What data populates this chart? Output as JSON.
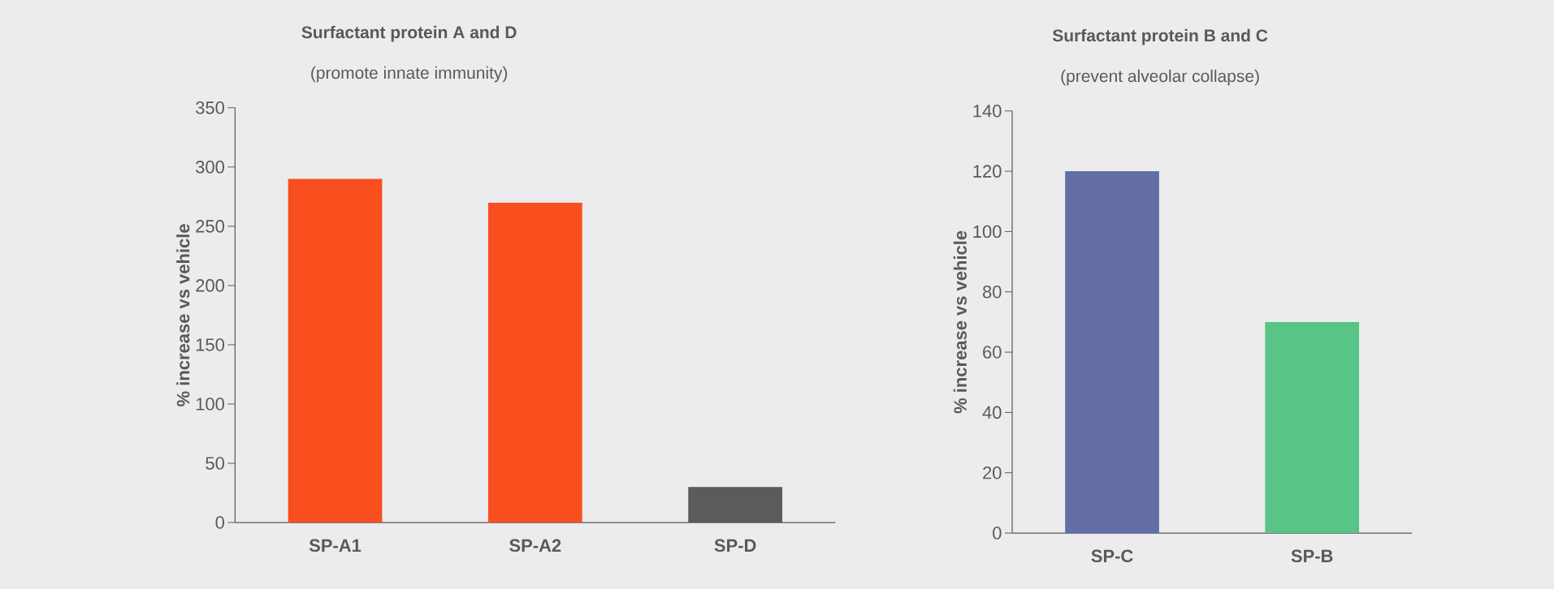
{
  "chart_data": [
    {
      "type": "bar",
      "title": "Surfactant protein A and D",
      "subtitle": "(promote innate immunity)",
      "ylabel": "% increase vs vehicle",
      "categories": [
        "SP-A1",
        "SP-A2",
        "SP-D"
      ],
      "values": [
        290,
        270,
        30
      ],
      "colors": [
        "#f94f1f",
        "#f94f1f",
        "#5b5b5b"
      ],
      "ylim": [
        0,
        350
      ],
      "yticks": [
        0,
        50,
        100,
        150,
        200,
        250,
        300,
        350
      ]
    },
    {
      "type": "bar",
      "title": "Surfactant protein B and C",
      "subtitle": "(prevent alveolar collapse)",
      "ylabel": "% increase vs vehicle",
      "categories": [
        "SP-C",
        "SP-B"
      ],
      "values": [
        120,
        70
      ],
      "colors": [
        "#636ea7",
        "#58c485"
      ],
      "ylim": [
        0,
        140
      ],
      "yticks": [
        0,
        20,
        40,
        60,
        80,
        100,
        120,
        140
      ]
    }
  ]
}
